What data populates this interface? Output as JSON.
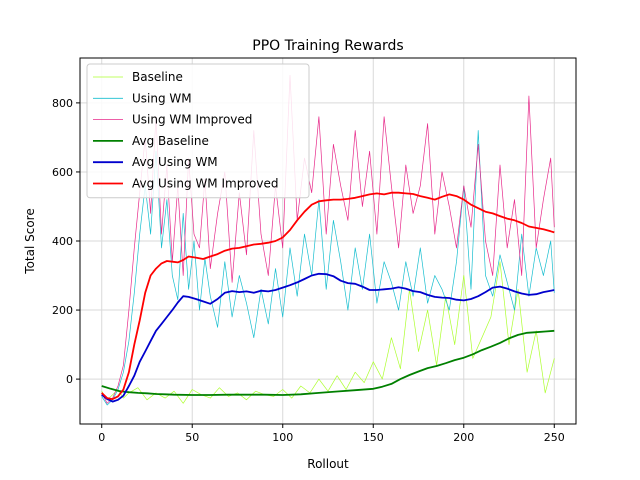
{
  "chart_data": {
    "type": "line",
    "title": "PPO Training Rewards",
    "xlabel": "Rollout",
    "ylabel": "Total Score",
    "xlim": [
      -12,
      262
    ],
    "ylim": [
      -130,
      930
    ],
    "xticks": [
      0,
      50,
      100,
      150,
      200,
      250
    ],
    "yticks": [
      0,
      200,
      400,
      600,
      800
    ],
    "grid": true,
    "legend_position": "top-left",
    "series": [
      {
        "name": "Baseline",
        "color": "#adff2f",
        "style": "thin",
        "x": [
          0,
          3,
          6,
          9,
          12,
          15,
          20,
          25,
          30,
          35,
          40,
          45,
          50,
          55,
          60,
          65,
          70,
          75,
          80,
          85,
          90,
          95,
          100,
          105,
          110,
          115,
          120,
          125,
          130,
          135,
          140,
          145,
          150,
          155,
          160,
          165,
          170,
          175,
          180,
          185,
          190,
          195,
          200,
          205,
          210,
          215,
          220,
          225,
          230,
          235,
          240,
          245,
          250
        ],
        "y": [
          -35,
          -60,
          -45,
          -30,
          -55,
          -40,
          -25,
          -60,
          -40,
          -55,
          -35,
          -70,
          -30,
          -45,
          -55,
          -25,
          -50,
          -40,
          -60,
          -35,
          -45,
          -50,
          -30,
          -55,
          -20,
          -40,
          0,
          -35,
          10,
          -30,
          20,
          -10,
          50,
          0,
          120,
          30,
          260,
          80,
          200,
          40,
          240,
          100,
          300,
          60,
          120,
          180,
          340,
          100,
          260,
          20,
          140,
          -40,
          60
        ]
      },
      {
        "name": "Using WM",
        "color": "#17becf",
        "style": "thin",
        "x": [
          0,
          3,
          6,
          9,
          12,
          15,
          18,
          21,
          24,
          27,
          30,
          33,
          36,
          39,
          42,
          45,
          48,
          51,
          54,
          57,
          60,
          64,
          68,
          72,
          76,
          80,
          84,
          88,
          92,
          96,
          100,
          104,
          108,
          112,
          116,
          120,
          124,
          128,
          132,
          136,
          140,
          144,
          148,
          152,
          156,
          160,
          164,
          168,
          172,
          176,
          180,
          184,
          188,
          192,
          196,
          200,
          204,
          208,
          212,
          216,
          220,
          224,
          228,
          232,
          236,
          240,
          244,
          248,
          250
        ],
        "y": [
          -50,
          -75,
          -60,
          -30,
          20,
          110,
          250,
          420,
          560,
          420,
          660,
          380,
          520,
          300,
          230,
          480,
          260,
          400,
          200,
          350,
          240,
          150,
          340,
          180,
          300,
          220,
          120,
          260,
          160,
          320,
          180,
          380,
          240,
          420,
          300,
          520,
          260,
          460,
          340,
          200,
          380,
          260,
          420,
          220,
          340,
          280,
          200,
          340,
          240,
          380,
          220,
          300,
          260,
          200,
          340,
          560,
          260,
          720,
          300,
          240,
          360,
          280,
          200,
          420,
          240,
          380,
          300,
          400,
          250
        ]
      },
      {
        "name": "Using WM Improved",
        "color": "#e7298a",
        "style": "thin",
        "x": [
          0,
          3,
          6,
          9,
          12,
          15,
          18,
          21,
          24,
          27,
          30,
          33,
          36,
          39,
          42,
          45,
          48,
          51,
          54,
          57,
          60,
          64,
          68,
          72,
          76,
          80,
          84,
          88,
          92,
          96,
          100,
          104,
          108,
          112,
          116,
          120,
          124,
          128,
          132,
          136,
          140,
          144,
          148,
          152,
          156,
          160,
          164,
          168,
          172,
          176,
          180,
          184,
          188,
          192,
          196,
          200,
          204,
          208,
          212,
          216,
          220,
          224,
          228,
          232,
          236,
          240,
          244,
          248,
          250
        ],
        "y": [
          -40,
          -70,
          -55,
          -20,
          40,
          200,
          380,
          540,
          700,
          480,
          760,
          420,
          620,
          340,
          560,
          300,
          640,
          420,
          380,
          580,
          320,
          480,
          600,
          280,
          540,
          360,
          720,
          420,
          300,
          560,
          380,
          880,
          460,
          640,
          540,
          760,
          420,
          680,
          560,
          460,
          720,
          500,
          660,
          420,
          760,
          560,
          380,
          620,
          480,
          560,
          740,
          420,
          600,
          500,
          380,
          560,
          440,
          680,
          400,
          300,
          620,
          380,
          520,
          300,
          820,
          380,
          520,
          640,
          440
        ]
      },
      {
        "name": "Avg Baseline",
        "color": "#008000",
        "style": "thick",
        "x": [
          0,
          5,
          10,
          15,
          20,
          25,
          30,
          35,
          40,
          50,
          60,
          70,
          80,
          90,
          100,
          110,
          120,
          130,
          140,
          150,
          155,
          160,
          165,
          170,
          175,
          180,
          185,
          190,
          195,
          200,
          205,
          210,
          215,
          220,
          225,
          230,
          235,
          240,
          245,
          250
        ],
        "y": [
          -20,
          -28,
          -35,
          -38,
          -40,
          -41,
          -43,
          -44,
          -45,
          -46,
          -46,
          -45,
          -45,
          -45,
          -46,
          -44,
          -40,
          -36,
          -32,
          -28,
          -22,
          -14,
          0,
          12,
          22,
          32,
          38,
          46,
          55,
          62,
          72,
          84,
          94,
          105,
          118,
          128,
          134,
          136,
          138,
          140
        ]
      },
      {
        "name": "Avg Using WM",
        "color": "#0000cd",
        "style": "thick",
        "x": [
          0,
          3,
          6,
          9,
          12,
          15,
          18,
          21,
          24,
          27,
          30,
          33,
          36,
          39,
          42,
          45,
          48,
          52,
          56,
          60,
          64,
          68,
          72,
          76,
          80,
          84,
          88,
          92,
          96,
          100,
          104,
          108,
          112,
          116,
          120,
          124,
          128,
          132,
          136,
          140,
          144,
          148,
          152,
          156,
          160,
          164,
          168,
          172,
          176,
          180,
          184,
          188,
          192,
          196,
          200,
          204,
          208,
          212,
          216,
          220,
          224,
          228,
          232,
          236,
          240,
          244,
          248,
          250
        ],
        "y": [
          -45,
          -58,
          -65,
          -60,
          -48,
          -20,
          10,
          50,
          80,
          110,
          140,
          160,
          180,
          200,
          222,
          240,
          238,
          232,
          225,
          218,
          232,
          250,
          255,
          252,
          254,
          250,
          256,
          254,
          258,
          265,
          272,
          280,
          290,
          300,
          305,
          304,
          298,
          285,
          278,
          276,
          268,
          258,
          258,
          260,
          262,
          266,
          262,
          255,
          252,
          244,
          238,
          236,
          235,
          230,
          228,
          232,
          240,
          252,
          265,
          268,
          262,
          254,
          248,
          244,
          246,
          252,
          256,
          258
        ]
      },
      {
        "name": "Avg Using WM Improved",
        "color": "#ff0000",
        "style": "thick",
        "x": [
          0,
          3,
          6,
          9,
          12,
          15,
          18,
          21,
          24,
          27,
          30,
          33,
          36,
          39,
          42,
          45,
          48,
          52,
          56,
          60,
          64,
          68,
          72,
          76,
          80,
          84,
          88,
          92,
          96,
          100,
          104,
          108,
          112,
          116,
          120,
          124,
          128,
          132,
          136,
          140,
          144,
          148,
          152,
          156,
          160,
          164,
          168,
          172,
          176,
          180,
          184,
          188,
          192,
          196,
          200,
          204,
          208,
          212,
          216,
          220,
          224,
          228,
          232,
          236,
          240,
          244,
          248,
          250
        ],
        "y": [
          -40,
          -55,
          -58,
          -50,
          -30,
          20,
          100,
          170,
          250,
          300,
          320,
          335,
          342,
          340,
          338,
          345,
          355,
          352,
          348,
          355,
          362,
          372,
          378,
          380,
          385,
          390,
          392,
          395,
          400,
          410,
          432,
          460,
          485,
          505,
          515,
          518,
          520,
          520,
          522,
          525,
          530,
          535,
          538,
          535,
          540,
          540,
          538,
          536,
          530,
          525,
          520,
          528,
          535,
          530,
          520,
          505,
          495,
          485,
          480,
          472,
          465,
          460,
          452,
          442,
          438,
          434,
          428,
          425
        ]
      }
    ]
  }
}
